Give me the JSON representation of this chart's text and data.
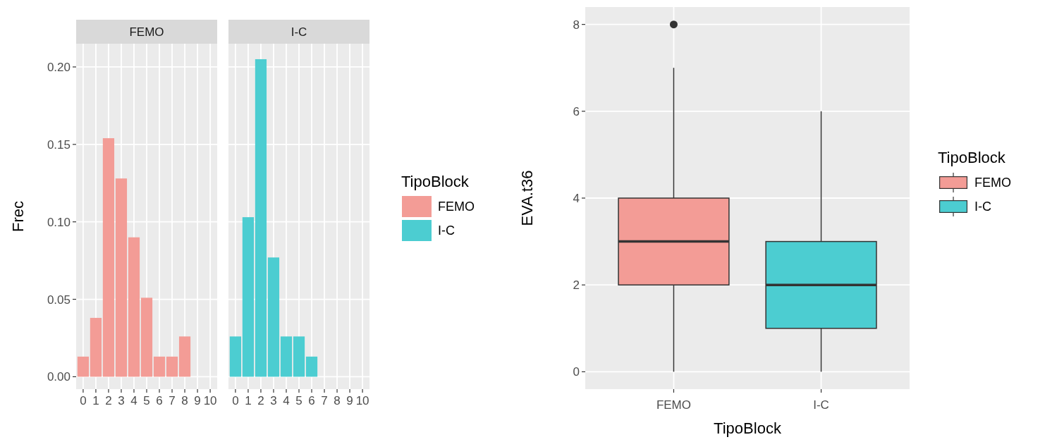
{
  "chart_data": [
    {
      "type": "bar",
      "title": "FEMO",
      "ylabel": "Frec",
      "x": [
        0,
        1,
        2,
        3,
        4,
        5,
        6,
        7,
        8
      ],
      "series": [
        {
          "name": "FEMO",
          "color": "#f39c96",
          "values": [
            0.013,
            0.038,
            0.154,
            0.128,
            0.09,
            0.051,
            0.013,
            0.013,
            0.026
          ]
        }
      ],
      "xlim": [
        -0.55,
        10.55
      ],
      "xticks": [
        0,
        1,
        2,
        3,
        4,
        5,
        6,
        7,
        8,
        9,
        10
      ],
      "ylim": [
        -0.008,
        0.215
      ],
      "yticks": [
        {
          "value": 0,
          "label": "0.00"
        },
        {
          "value": 0.05,
          "label": "0.05"
        },
        {
          "value": 0.1,
          "label": "0.10"
        },
        {
          "value": 0.15,
          "label": "0.15"
        },
        {
          "value": 0.2,
          "label": "0.20"
        }
      ],
      "grid": true,
      "legend": "right",
      "legend_title": "TipoBlock"
    },
    {
      "type": "bar",
      "title": "I-C",
      "x": [
        0,
        1,
        2,
        3,
        4,
        5,
        6
      ],
      "series": [
        {
          "name": "I-C",
          "color": "#4ccdd1",
          "values": [
            0.026,
            0.103,
            0.205,
            0.077,
            0.026,
            0.026,
            0.013
          ]
        }
      ],
      "xlim": [
        -0.55,
        10.55
      ],
      "xticks": [
        0,
        1,
        2,
        3,
        4,
        5,
        6,
        7,
        8,
        9,
        10
      ],
      "ylim": [
        -0.008,
        0.215
      ],
      "yticks": [
        0,
        0.05,
        0.1,
        0.15,
        0.2
      ],
      "grid": true,
      "tick_labels": "x",
      "legend": "right"
    },
    {
      "type": "box",
      "xlabel": "TipoBlock",
      "ylabel": "EVA.t36",
      "categories": [
        "FEMO",
        "I-C"
      ],
      "series": [
        {
          "name": "FEMO",
          "color": "#f39c96",
          "boxes": [
            {
              "low": 0,
              "q1": 2,
              "median": 3,
              "q3": 4,
              "high": 7,
              "outliers": [
                8
              ]
            },
            null
          ]
        },
        {
          "name": "I-C",
          "color": "#4ccdd1",
          "boxes": [
            null,
            {
              "low": 0,
              "q1": 1,
              "median": 2,
              "q3": 3,
              "high": 6
            }
          ]
        }
      ],
      "ylim": [
        -0.4,
        8.4
      ],
      "yticks": [
        0,
        2,
        4,
        6,
        8
      ],
      "grid": true,
      "legend": "right",
      "legend_title": "TipoBlock"
    }
  ]
}
